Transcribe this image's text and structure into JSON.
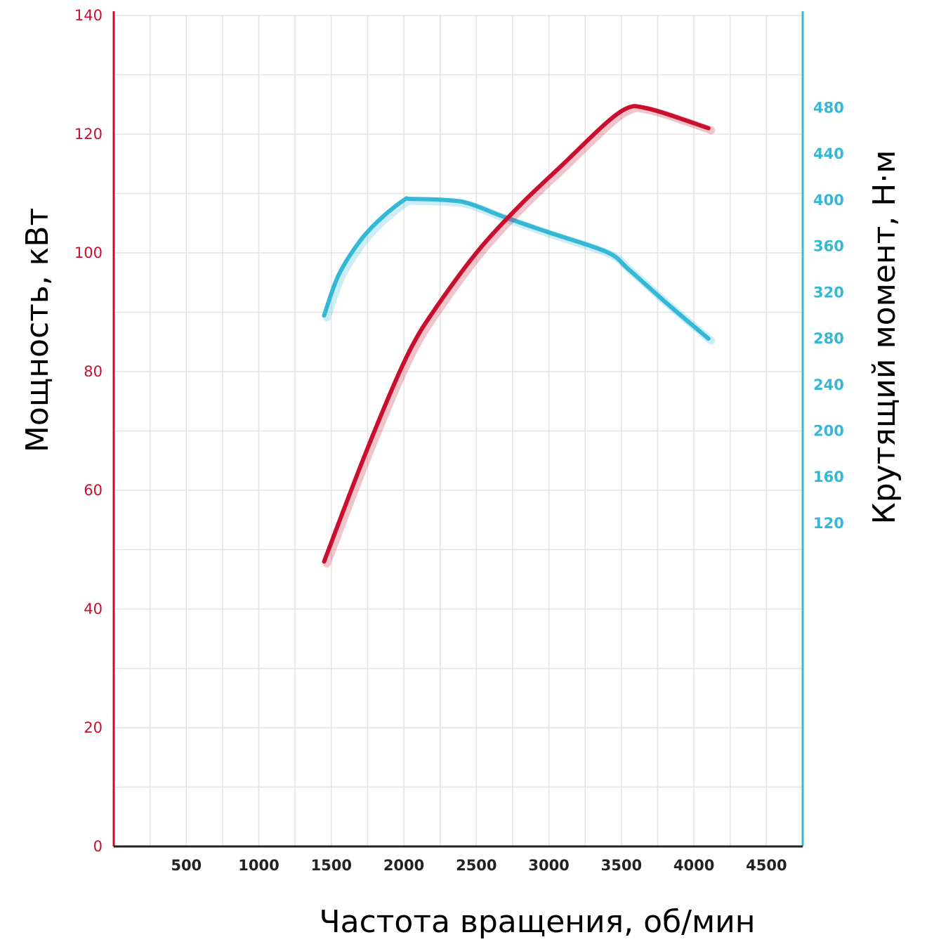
{
  "chart_data": {
    "type": "line",
    "xlabel": "Частота вращения, об/мин",
    "ylabel_left": "Мощность, кВт",
    "ylabel_right": "Крутящий момент, Н·м",
    "x_ticks": [
      "500",
      "1000",
      "1500",
      "2000",
      "2500",
      "3000",
      "3500",
      "4000",
      "4500"
    ],
    "y_left_ticks": [
      "0",
      "20",
      "40",
      "60",
      "80",
      "100",
      "120",
      "140"
    ],
    "y_right_ticks": [
      "120",
      "160",
      "200",
      "240",
      "280",
      "320",
      "360",
      "400",
      "440",
      "480"
    ],
    "xlim": [
      0,
      4750
    ],
    "ylim_left": [
      0,
      140
    ],
    "ylim_right": [
      -160,
      560
    ],
    "grid": true,
    "colors": {
      "left_axis": "#c8102e",
      "right_axis": "#35b8d6",
      "power_line": "#c8102e",
      "torque_line": "#35b8d6",
      "grid": "#e3e3e3"
    },
    "series": [
      {
        "axis": "left",
        "x": [
          1450,
          1700,
          1900,
          2050,
          2200,
          2500,
          2800,
          3100,
          3400,
          3550,
          3650,
          3800,
          4100
        ],
        "values": [
          48,
          64,
          76,
          84,
          90,
          100,
          108,
          115,
          122,
          124.5,
          124.5,
          123.5,
          121
        ]
      },
      {
        "axis": "right",
        "x": [
          1450,
          1550,
          1700,
          1850,
          2000,
          2050,
          2300,
          2450,
          2700,
          3000,
          3400,
          3550,
          3800,
          4100
        ],
        "values": [
          300,
          335,
          365,
          385,
          400,
          401,
          400,
          397,
          385,
          372,
          355,
          340,
          312,
          280
        ]
      }
    ]
  }
}
